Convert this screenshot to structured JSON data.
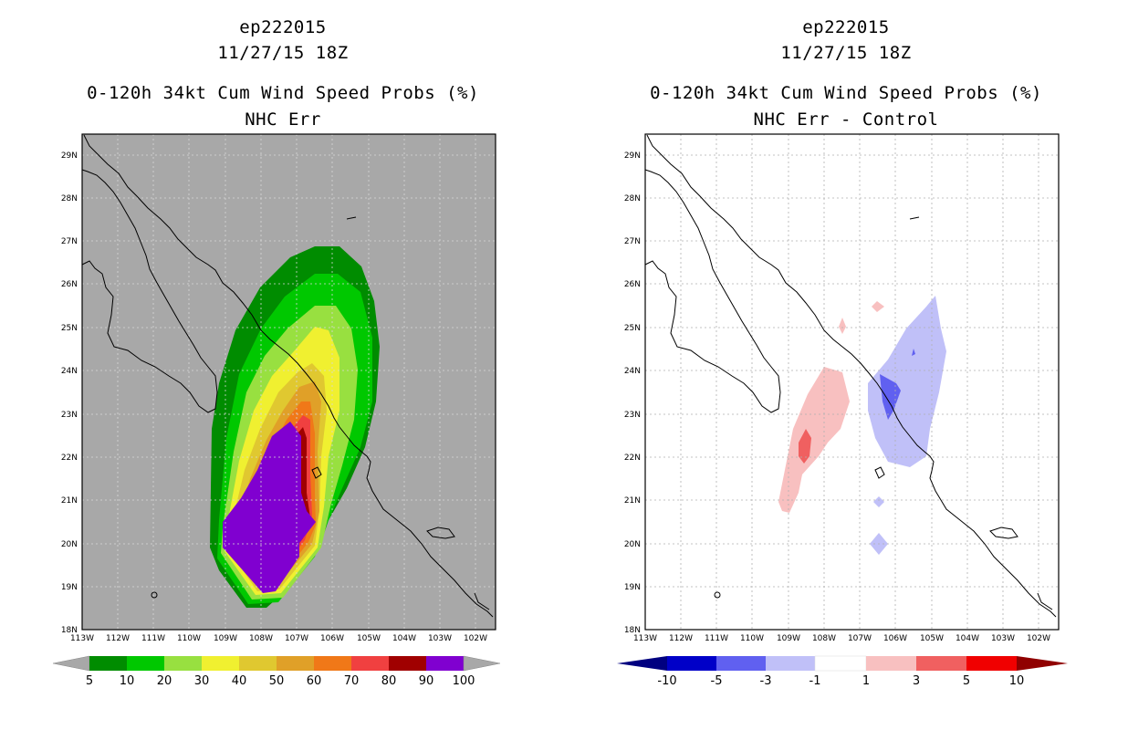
{
  "left_panel": {
    "title_lines": [
      "ep222015",
      "11/27/15 18Z",
      "0-120h 34kt Cum Wind Speed Probs (%)",
      "NHC Err"
    ],
    "background_color": "#a8a8a8",
    "lat_labels": [
      "29N",
      "28N",
      "27N",
      "26N",
      "25N",
      "24N",
      "23N",
      "22N",
      "21N",
      "20N",
      "19N",
      "18N"
    ],
    "lon_labels": [
      "113W",
      "112W",
      "111W",
      "110W",
      "109W",
      "108W",
      "107W",
      "106W",
      "105W",
      "104W",
      "103W",
      "102W"
    ],
    "colorbar": {
      "colors": [
        "#008c00",
        "#00c800",
        "#98e040",
        "#f0f030",
        "#e0c830",
        "#e0a028",
        "#f07818",
        "#f04040",
        "#a00000",
        "#8000d0"
      ],
      "end_color": "#a8a8a8",
      "labels": [
        "5",
        "10",
        "20",
        "30",
        "40",
        "50",
        "60",
        "70",
        "80",
        "90",
        "100"
      ]
    }
  },
  "right_panel": {
    "title_lines": [
      "ep222015",
      "11/27/15 18Z",
      "0-120h 34kt Cum Wind Speed Probs (%)",
      "NHC Err - Control"
    ],
    "lat_labels": [
      "29N",
      "28N",
      "27N",
      "26N",
      "25N",
      "24N",
      "23N",
      "22N",
      "21N",
      "20N",
      "19N",
      "18N"
    ],
    "lon_labels": [
      "113W",
      "112W",
      "111W",
      "110W",
      "109W",
      "108W",
      "107W",
      "106W",
      "105W",
      "104W",
      "103W",
      "102W"
    ],
    "colorbar": {
      "colors": [
        "#0000c8",
        "#6060f0",
        "#c0c0f8",
        "#ffffff",
        "#f8c0c0",
        "#f06060",
        "#f00000"
      ],
      "left_end_color": "#000080",
      "right_end_color": "#900000",
      "labels": [
        "-10",
        "-5",
        "-3",
        "-1",
        "1",
        "3",
        "5",
        "10"
      ]
    }
  }
}
